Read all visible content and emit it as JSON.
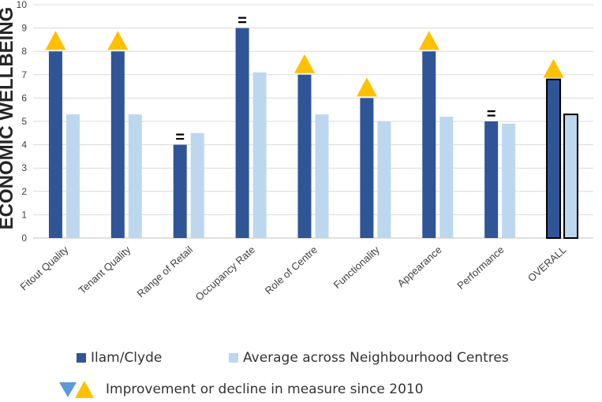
{
  "chart_data": {
    "type": "bar",
    "title": "",
    "ylabel": "ECONOMIC WELLBEING",
    "ylim": [
      0,
      10
    ],
    "yticks": [
      0,
      1,
      2,
      3,
      4,
      5,
      6,
      7,
      8,
      9,
      10
    ],
    "grid": true,
    "categories": [
      "Fitout Quality",
      "Tenant Quality",
      "Range of Retail",
      "Occupancy Rate",
      "Role of Centre",
      "Functionality",
      "Appearance",
      "Performance",
      "OVERALL"
    ],
    "series": [
      {
        "name": "Ilam/Clyde",
        "color": "#2F5597",
        "values": [
          8,
          8,
          4,
          9,
          7,
          6,
          8,
          5,
          6.8
        ]
      },
      {
        "name": "Average across Neighbourhood Centres",
        "color": "#BDD7EE",
        "values": [
          5.3,
          5.3,
          4.5,
          7.1,
          5.3,
          5.0,
          5.2,
          4.9,
          5.3
        ]
      }
    ],
    "change_markers": [
      "up",
      "up",
      "=",
      "=",
      "up",
      "up",
      "up",
      "=",
      "up"
    ],
    "marker_colors": {
      "up": "#FFC000",
      "down": "#5B9BD5"
    }
  },
  "legend": {
    "series1_label": "Ilam/Clyde",
    "series2_label": "Average across Neighbourhood Centres",
    "change_label": "Improvement or decline in measure since 2010"
  }
}
